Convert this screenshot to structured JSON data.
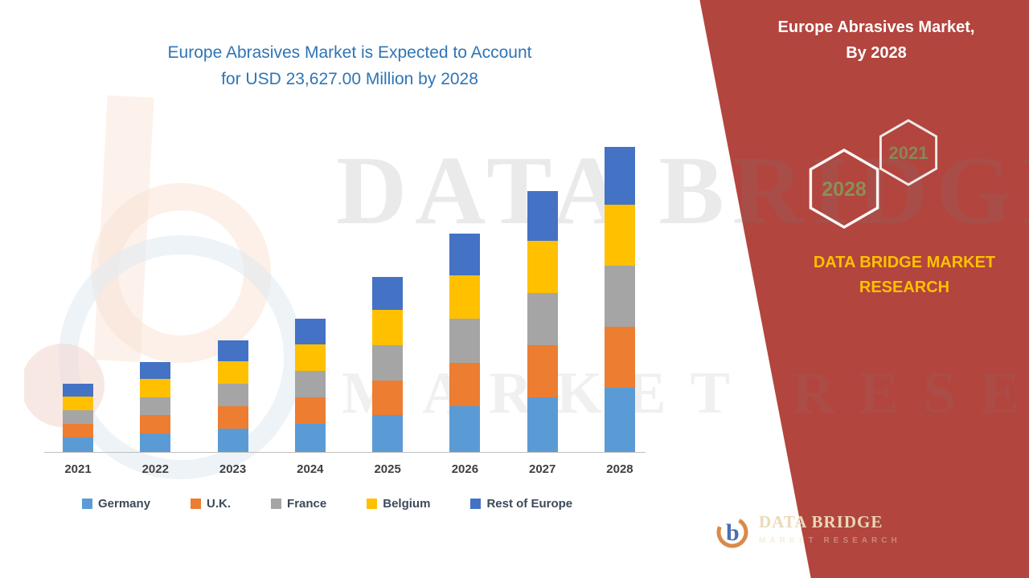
{
  "chart": {
    "title_line1": "Europe Abrasives Market is Expected to Account",
    "title_line2": "for USD 23,627.00 Million by 2028",
    "title_color": "#2e75b6"
  },
  "chart_data": {
    "type": "bar",
    "stacked": true,
    "title": "Europe Abrasives Market is Expected to Account for USD 23,627.00 Million by 2028",
    "unit": "USD Million",
    "categories": [
      "2021",
      "2022",
      "2023",
      "2024",
      "2025",
      "2026",
      "2027",
      "2028"
    ],
    "series": [
      {
        "name": "Germany",
        "color": "#5b9bd5",
        "values": [
          1110,
          1462,
          1815,
          2167,
          2846,
          3551,
          4243,
          4962
        ]
      },
      {
        "name": "U.K.",
        "color": "#ed7d31",
        "values": [
          1057,
          1393,
          1728,
          2064,
          2711,
          3382,
          4041,
          4725
        ]
      },
      {
        "name": "France",
        "color": "#a5a5a5",
        "values": [
          1057,
          1393,
          1728,
          2064,
          2711,
          3382,
          4041,
          4725
        ]
      },
      {
        "name": "Belgium",
        "color": "#ffc000",
        "values": [
          1057,
          1393,
          1728,
          2064,
          2711,
          3382,
          4041,
          4725
        ]
      },
      {
        "name": "Rest of Europe",
        "color": "#4472c4",
        "values": [
          1004,
          1322,
          1643,
          1961,
          2574,
          3213,
          3839,
          4490
        ]
      }
    ],
    "totals": [
      5285,
      6963,
      8642,
      10320,
      13553,
      16910,
      20205,
      23627
    ],
    "ylim": [
      0,
      23627
    ],
    "grid": false,
    "legend_position": "bottom",
    "xlabel": "",
    "ylabel": ""
  },
  "side_panel": {
    "bg": "#b2453e",
    "title_line1": "Europe Abrasives Market,",
    "title_line2": "By 2028",
    "hex_2021": "2021",
    "hex_2028": "2028",
    "hex_label_color": "#8b8f55",
    "brand_line1": "DATA BRIDGE MARKET",
    "brand_line2": "RESEARCH",
    "brand_color": "#ffc000"
  },
  "footer_logo": {
    "name": "DATA BRIDGE",
    "sub": "MARKET RESEARCH"
  },
  "watermark": {
    "line1": "DATA BRIDGE",
    "line2": "MARKET RESEARCH"
  }
}
